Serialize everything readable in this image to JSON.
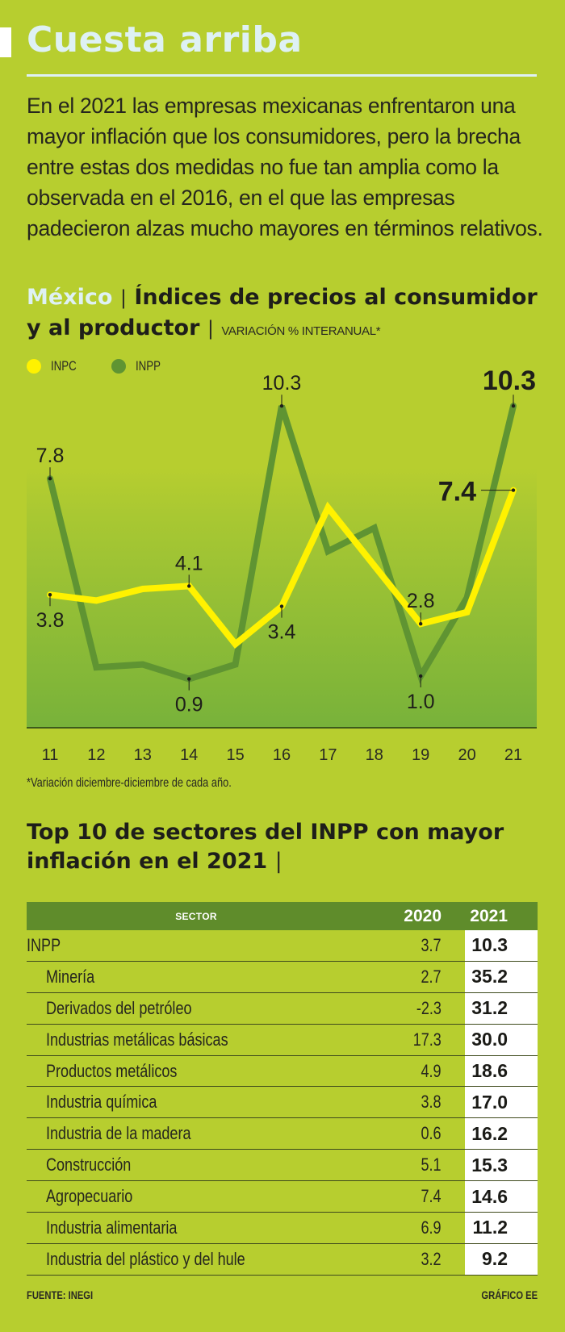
{
  "header": {
    "title": "Cuesta arriba",
    "intro": "En el 2021 las empresas mexicanas enfrentaron una mayor inflación que los consumidores, pero la brecha entre estas dos medidas no fue tan amplia como la observada en el 2016, en el que las empresas padecieron alzas mucho mayores en términos relativos."
  },
  "colors": {
    "background": "#b7ce2f",
    "title": "#def1f4",
    "inpc": "#fff200",
    "inpp": "#5f9432",
    "table_header": "#5f8c2b"
  },
  "chart_title": {
    "country": "México",
    "separator": "|",
    "title": "Índices de precios al consumidor y al productor",
    "unit": "VARIACIÓN % INTERANUAL*"
  },
  "chart_data": {
    "type": "line",
    "title": "Índices de precios al consumidor y al productor",
    "subtitle": "VARIACIÓN % INTERANUAL*",
    "xlabel": "",
    "ylabel": "",
    "x": [
      "11",
      "12",
      "13",
      "14",
      "15",
      "16",
      "17",
      "18",
      "19",
      "20",
      "21"
    ],
    "ylim": [
      -0.8,
      11.5
    ],
    "grid": false,
    "legend_position": "top-left",
    "series": [
      {
        "name": "INPC",
        "color": "#fff200",
        "values": [
          3.8,
          3.6,
          4.0,
          4.1,
          2.1,
          3.4,
          6.8,
          4.8,
          2.8,
          3.2,
          7.4
        ],
        "labels": [
          {
            "index": 0,
            "text": "3.8",
            "position": "below",
            "emphasis": false
          },
          {
            "index": 3,
            "text": "4.1",
            "position": "above",
            "emphasis": false
          },
          {
            "index": 5,
            "text": "3.4",
            "position": "below",
            "emphasis": false
          },
          {
            "index": 8,
            "text": "2.8",
            "position": "above",
            "emphasis": false
          },
          {
            "index": 10,
            "text": "7.4",
            "position": "left",
            "emphasis": true
          }
        ]
      },
      {
        "name": "INPP",
        "color": "#5f9432",
        "values": [
          7.8,
          1.3,
          1.4,
          0.9,
          1.4,
          10.3,
          5.3,
          6.1,
          1.0,
          3.7,
          10.3
        ],
        "labels": [
          {
            "index": 0,
            "text": "7.8",
            "position": "above",
            "emphasis": false
          },
          {
            "index": 3,
            "text": "0.9",
            "position": "below",
            "emphasis": false
          },
          {
            "index": 5,
            "text": "10.3",
            "position": "above",
            "emphasis": false
          },
          {
            "index": 8,
            "text": "1.0",
            "position": "below",
            "emphasis": false
          },
          {
            "index": 10,
            "text": "10.3",
            "position": "above",
            "emphasis": true
          }
        ]
      }
    ]
  },
  "footnote": "*Variación diciembre-diciembre de cada año.",
  "table": {
    "title": "Top 10 de sectores del INPP con mayor inflación en el 2021",
    "title_separator": "|",
    "columns": [
      "SECTOR",
      "2020",
      "2021"
    ],
    "rows": [
      {
        "sector": "INPP",
        "y2020": "3.7",
        "y2021": "10.3",
        "sub": false
      },
      {
        "sector": "Minería",
        "y2020": "2.7",
        "y2021": "35.2",
        "sub": true
      },
      {
        "sector": "Derivados del petróleo",
        "y2020": "-2.3",
        "y2021": "31.2",
        "sub": true
      },
      {
        "sector": "Industrias metálicas básicas",
        "y2020": "17.3",
        "y2021": "30.0",
        "sub": true
      },
      {
        "sector": "Productos metálicos",
        "y2020": "4.9",
        "y2021": "18.6",
        "sub": true
      },
      {
        "sector": "Industria química",
        "y2020": "3.8",
        "y2021": "17.0",
        "sub": true
      },
      {
        "sector": "Industria de la madera",
        "y2020": "0.6",
        "y2021": "16.2",
        "sub": true
      },
      {
        "sector": "Construcción",
        "y2020": "5.1",
        "y2021": "15.3",
        "sub": true
      },
      {
        "sector": "Agropecuario",
        "y2020": "7.4",
        "y2021": "14.6",
        "sub": true
      },
      {
        "sector": "Industria alimentaria",
        "y2020": "6.9",
        "y2021": "11.2",
        "sub": true
      },
      {
        "sector": "Industria del plástico y del hule",
        "y2020": "3.2",
        "y2021": "9.2",
        "sub": true
      }
    ]
  },
  "footer": {
    "source": "FUENTE: INEGI",
    "credit": "GRÁFICO EE"
  }
}
